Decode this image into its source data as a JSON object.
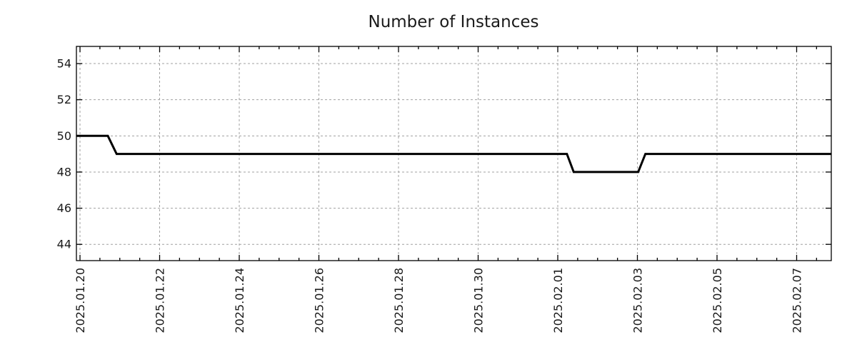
{
  "chart": {
    "title": "Number of Instances"
  },
  "colors": {
    "background": "#ffffff",
    "line": "#000000",
    "grid": "#a0a0a0",
    "axis": "#000000",
    "text": "#1a1a1a"
  },
  "chart_data": {
    "type": "line",
    "title": "Number of Instances",
    "xlabel": "",
    "ylabel": "",
    "legend": false,
    "grid": true,
    "x_axis": {
      "type": "time",
      "day_offsets_relative_to": "2025.01.20",
      "tick_labels": [
        "2025.01.20",
        "2025.01.22",
        "2025.01.24",
        "2025.01.26",
        "2025.01.28",
        "2025.01.30",
        "2025.02.01",
        "2025.02.03",
        "2025.02.05",
        "2025.02.07"
      ],
      "tick_days": [
        0,
        2,
        4,
        6,
        8,
        10,
        12,
        14,
        16,
        18
      ],
      "minor_tick_interval_days": 0.5,
      "range_days": [
        -0.09,
        18.87
      ],
      "tick_label_rotation_deg": 90
    },
    "y_axis": {
      "tick_values": [
        44,
        46,
        48,
        50,
        52,
        54
      ],
      "range": [
        43.1,
        54.95
      ]
    },
    "series": [
      {
        "name": "Number of Instances",
        "color": "#000000",
        "points_day_value": [
          [
            -0.09,
            50
          ],
          [
            0.7,
            50
          ],
          [
            0.92,
            49
          ],
          [
            12.23,
            49
          ],
          [
            12.4,
            48
          ],
          [
            14.02,
            48
          ],
          [
            14.2,
            49
          ],
          [
            18.87,
            49
          ]
        ]
      }
    ]
  }
}
